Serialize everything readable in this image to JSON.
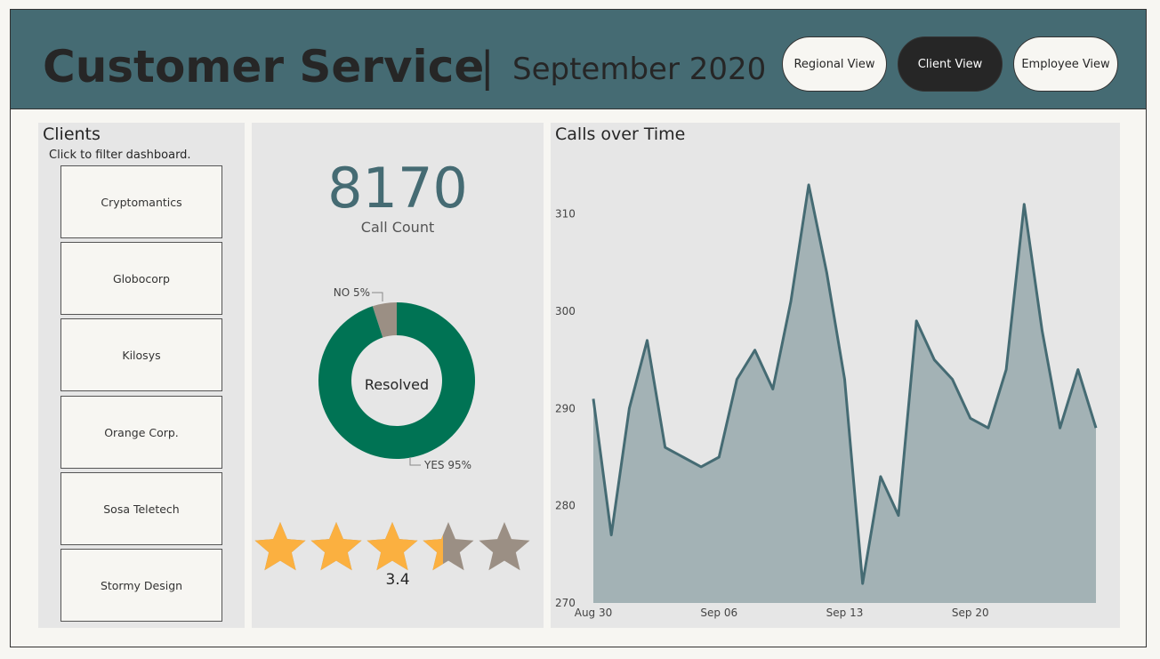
{
  "header": {
    "title": "Customer Service",
    "separator": "|",
    "subtitle": "September 2020",
    "nav": [
      {
        "label": "Regional View",
        "active": false
      },
      {
        "label": "Client View",
        "active": true
      },
      {
        "label": "Employee View",
        "active": false
      }
    ]
  },
  "clients": {
    "title": "Clients",
    "hint": "Click to filter dashboard.",
    "items": [
      "Cryptomantics",
      "Globocorp",
      "Kilosys",
      "Orange Corp.",
      "Sosa Teletech",
      "Stormy Design"
    ]
  },
  "kpi": {
    "call_count": "8170",
    "call_count_label": "Call Count",
    "resolved": {
      "center_label": "Resolved",
      "slices": [
        {
          "label": "NO 5%",
          "value": 5,
          "color": "#9b8f84"
        },
        {
          "label": "YES 95%",
          "value": 95,
          "color": "#007354"
        }
      ]
    },
    "rating": {
      "value": "3.4",
      "score": 3.4,
      "max": 5,
      "filled_color": "#fbb040",
      "empty_color": "#9b8f84"
    }
  },
  "chart_data": {
    "type": "area",
    "title": "Calls over Time",
    "x": [
      "2020-08-30",
      "2020-08-31",
      "2020-09-01",
      "2020-09-02",
      "2020-09-03",
      "2020-09-04",
      "2020-09-05",
      "2020-09-06",
      "2020-09-07",
      "2020-09-08",
      "2020-09-09",
      "2020-09-10",
      "2020-09-11",
      "2020-09-12",
      "2020-09-13",
      "2020-09-14",
      "2020-09-15",
      "2020-09-16",
      "2020-09-17",
      "2020-09-18",
      "2020-09-19",
      "2020-09-20",
      "2020-09-21",
      "2020-09-22",
      "2020-09-23",
      "2020-09-24",
      "2020-09-25",
      "2020-09-26",
      "2020-09-27"
    ],
    "values": [
      291,
      277,
      290,
      297,
      286,
      285,
      284,
      285,
      293,
      296,
      292,
      301,
      313,
      304,
      293,
      272,
      283,
      279,
      299,
      295,
      293,
      289,
      288,
      294,
      311,
      298,
      288,
      294,
      288
    ],
    "x_tick_labels": [
      "Aug 30",
      "Sep 06",
      "Sep 13",
      "Sep 20"
    ],
    "y_ticks": [
      270,
      280,
      290,
      300,
      310
    ],
    "ylim": [
      270,
      315
    ],
    "line_color": "#456b73",
    "fill_color": "#a3b2b5",
    "grid": false
  }
}
